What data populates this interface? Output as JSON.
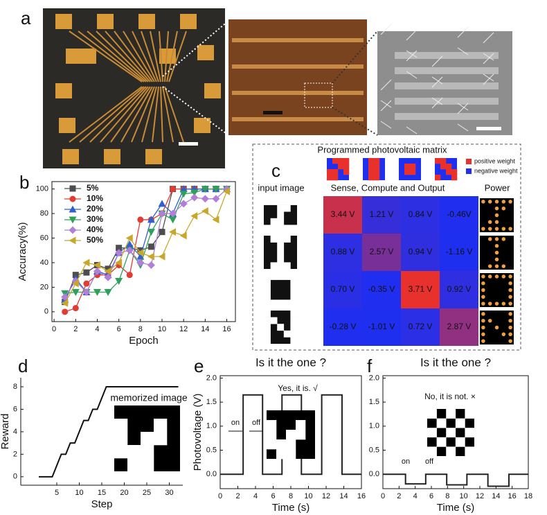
{
  "panel_labels": [
    "a",
    "b",
    "c",
    "d",
    "e",
    "f"
  ],
  "chart_data": [
    {
      "type": "line",
      "x": [
        1,
        2,
        3,
        4,
        5,
        6,
        7,
        8,
        9,
        10,
        11,
        12,
        13,
        14,
        15,
        16
      ],
      "xlabel": "Epoch",
      "ylabel": "Accuracy(%)",
      "xlim": [
        -0.2,
        16.8
      ],
      "ylim": [
        -8,
        106
      ],
      "xticks": [
        0,
        2,
        4,
        6,
        8,
        10,
        12,
        14,
        16
      ],
      "yticks": [
        0,
        20,
        40,
        60,
        80,
        100
      ],
      "series": [
        {
          "name": "5%",
          "color": "#4d4d4d",
          "marker": "square",
          "values": [
            8,
            30,
            32,
            38,
            35,
            52,
            52,
            50,
            53,
            65,
            100,
            100,
            100,
            100,
            100,
            100
          ]
        },
        {
          "name": "10%",
          "color": "#e03c31",
          "marker": "circle",
          "values": [
            0,
            3,
            23,
            30,
            30,
            38,
            30,
            75,
            75,
            80,
            100,
            100,
            100,
            100,
            100,
            100
          ]
        },
        {
          "name": "20%",
          "color": "#2f5fd0",
          "marker": "triangle-up",
          "values": [
            10,
            27,
            16,
            33,
            30,
            48,
            55,
            45,
            75,
            88,
            80,
            100,
            100,
            100,
            100,
            100
          ]
        },
        {
          "name": "30%",
          "color": "#2ea05a",
          "marker": "triangle-down",
          "values": [
            15,
            16,
            16,
            16,
            16,
            25,
            50,
            38,
            65,
            80,
            75,
            96,
            97,
            100,
            100,
            100
          ]
        },
        {
          "name": "40%",
          "color": "#b07fd8",
          "marker": "diamond",
          "values": [
            12,
            25,
            16,
            33,
            28,
            48,
            50,
            40,
            38,
            80,
            80,
            88,
            93,
            92,
            92,
            100
          ]
        },
        {
          "name": "50%",
          "color": "#c8a82c",
          "marker": "triangle-left",
          "values": [
            7,
            23,
            40,
            38,
            33,
            40,
            60,
            48,
            45,
            45,
            65,
            62,
            78,
            82,
            75,
            98
          ]
        }
      ]
    },
    {
      "type": "heatmap",
      "subtitle": "Programmed photovoltaic matrix",
      "title": "Sense, Compute and Output",
      "row_header": "input image",
      "output_header": "Power",
      "legend": [
        {
          "name": "positive weight",
          "color": "#e8302c"
        },
        {
          "name": "negative weight",
          "color": "#1f2ff0"
        }
      ],
      "values": [
        [
          3.44,
          1.21,
          0.84,
          -0.46
        ],
        [
          0.88,
          2.57,
          0.94,
          -1.16
        ],
        [
          0.7,
          -0.35,
          3.71,
          0.92
        ],
        [
          -0.28,
          -1.01,
          0.72,
          2.87
        ]
      ],
      "value_labels": [
        [
          "3.44 V",
          "1.21 V",
          "0.84 V",
          "-0.46V"
        ],
        [
          "0.88 V",
          "2.57 V",
          "0.94 V",
          "-1.16 V"
        ],
        [
          "0.70 V",
          "-0.35 V",
          "3.71 V",
          "0.92 V"
        ],
        [
          "-0.28 V",
          "-1.01 V",
          "0.72 V",
          "2.87 V"
        ]
      ]
    },
    {
      "type": "line",
      "xlabel": "Step",
      "ylabel": "Reward",
      "annotations": [
        "memorized image"
      ],
      "color": "#111111",
      "x": [
        1,
        4,
        5,
        6,
        7,
        8,
        9,
        10,
        11,
        12,
        13,
        14,
        15,
        16,
        32
      ],
      "values": [
        0,
        0,
        1,
        2,
        2,
        3,
        3,
        4,
        5,
        5,
        6,
        6,
        7,
        8,
        8
      ],
      "xlim": [
        -3,
        33
      ],
      "ylim": [
        -0.75,
        8.8
      ],
      "xticks": [
        5,
        10,
        15,
        20,
        25,
        30
      ],
      "yticks": [
        0,
        2,
        4,
        6,
        8
      ]
    },
    {
      "type": "line",
      "title": "Is it the one ?",
      "xlabel": "Time (s)",
      "ylabel": "Photovoltage (V)",
      "annotations": [
        "Yes, it is. √",
        "on",
        "off"
      ],
      "color": "#222222",
      "x": [
        0,
        2.6,
        2.6,
        4.8,
        4.8,
        7.0,
        7.0,
        9.2,
        9.2,
        11.5,
        11.5,
        13.8,
        13.8,
        16
      ],
      "values": [
        0,
        0,
        1.65,
        1.65,
        0,
        0,
        1.65,
        1.65,
        0,
        0,
        1.65,
        1.65,
        0,
        0
      ],
      "xlim": [
        0,
        16
      ],
      "ylim": [
        -0.3,
        2.05
      ],
      "xticks": [
        0,
        2,
        4,
        6,
        8,
        10,
        12,
        14,
        16
      ],
      "yticks": [
        {
          "value": 0,
          "label": "0.0"
        },
        0.5,
        {
          "value": 1,
          "label": "1.0"
        },
        1.5,
        {
          "value": 2,
          "label": "2.0"
        }
      ]
    },
    {
      "type": "line",
      "title": "Is it the one ?",
      "xlabel": "Time (s)",
      "annotations": [
        "No, it is not. ×",
        "on",
        "off"
      ],
      "color": "#222222",
      "x": [
        0,
        2.8,
        2.8,
        5.3,
        5.3,
        7.9,
        7.9,
        10.4,
        10.4,
        13,
        13,
        15.6,
        15.6,
        18
      ],
      "values": [
        0,
        0,
        -0.2,
        -0.2,
        0,
        0,
        -0.22,
        -0.22,
        0,
        0,
        -0.25,
        -0.25,
        0,
        0
      ],
      "xlim": [
        0,
        18
      ],
      "ylim": [
        -0.3,
        2.05
      ],
      "xticks": [
        0,
        2,
        4,
        6,
        8,
        10,
        12,
        14,
        16,
        18
      ],
      "yticks": [
        {
          "value": 0,
          "label": "0.0"
        },
        0.5,
        {
          "value": 1,
          "label": "1.0"
        },
        1.5,
        {
          "value": 2,
          "label": "2.0"
        }
      ]
    }
  ]
}
